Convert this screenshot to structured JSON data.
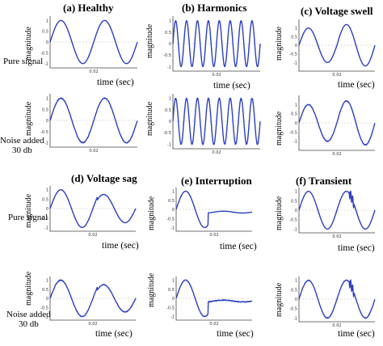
{
  "titles": {
    "healthy": "(a) Healthy",
    "harmonics": "(b) Harmonics",
    "swell": "(c) Voltage swell",
    "sag": "(d) Voltage sag",
    "interruption": "(e) Interruption",
    "transient": "(f) Transient"
  },
  "row_labels": {
    "pure": "Pure signal",
    "noise_line1": "Noise added",
    "noise_line2": "30 db"
  },
  "axis": {
    "xlabel": "time (sec)",
    "ylabel": "magnitude",
    "xtick_mid": "0.02"
  },
  "colors": {
    "signal": "#2b3fbf",
    "axis": "#444444",
    "grid": "#bbbbbb"
  },
  "chart_data": [
    {
      "type": "line",
      "name": "healthy-pure",
      "signal": "healthy",
      "noisy": false,
      "cycles": 2,
      "ylim": [
        -1.2,
        1.2
      ]
    },
    {
      "type": "line",
      "name": "harmonics-pure",
      "signal": "harmonics",
      "noisy": false,
      "cycles": 8,
      "ylim": [
        -1.2,
        1.2
      ]
    },
    {
      "type": "line",
      "name": "swell-pure",
      "signal": "swell",
      "noisy": false,
      "cycles": 2,
      "ylim": [
        -1.5,
        1.5
      ]
    },
    {
      "type": "line",
      "name": "healthy-noise",
      "signal": "healthy",
      "noisy": true,
      "cycles": 2,
      "ylim": [
        -1.2,
        1.2
      ]
    },
    {
      "type": "line",
      "name": "harmonics-noise",
      "signal": "harmonics",
      "noisy": true,
      "cycles": 8,
      "ylim": [
        -1.2,
        1.2
      ]
    },
    {
      "type": "line",
      "name": "swell-noise",
      "signal": "swell",
      "noisy": true,
      "cycles": 2,
      "ylim": [
        -1.5,
        1.5
      ]
    },
    {
      "type": "line",
      "name": "sag-pure",
      "signal": "sag",
      "noisy": false,
      "cycles": 2,
      "ylim": [
        -1.2,
        1.2
      ]
    },
    {
      "type": "line",
      "name": "interruption-pure",
      "signal": "interruption",
      "noisy": false,
      "cycles": 2,
      "ylim": [
        -1.2,
        1.2
      ]
    },
    {
      "type": "line",
      "name": "transient-pure",
      "signal": "transient",
      "noisy": false,
      "cycles": 2,
      "ylim": [
        -1.2,
        1.2
      ]
    },
    {
      "type": "line",
      "name": "sag-noise",
      "signal": "sag",
      "noisy": true,
      "cycles": 2,
      "ylim": [
        -1.2,
        1.2
      ]
    },
    {
      "type": "line",
      "name": "interruption-noise",
      "signal": "interruption",
      "noisy": true,
      "cycles": 2,
      "ylim": [
        -1.2,
        1.2
      ]
    },
    {
      "type": "line",
      "name": "transient-noise",
      "signal": "transient",
      "noisy": true,
      "cycles": 2,
      "ylim": [
        -1.2,
        1.2
      ]
    }
  ]
}
